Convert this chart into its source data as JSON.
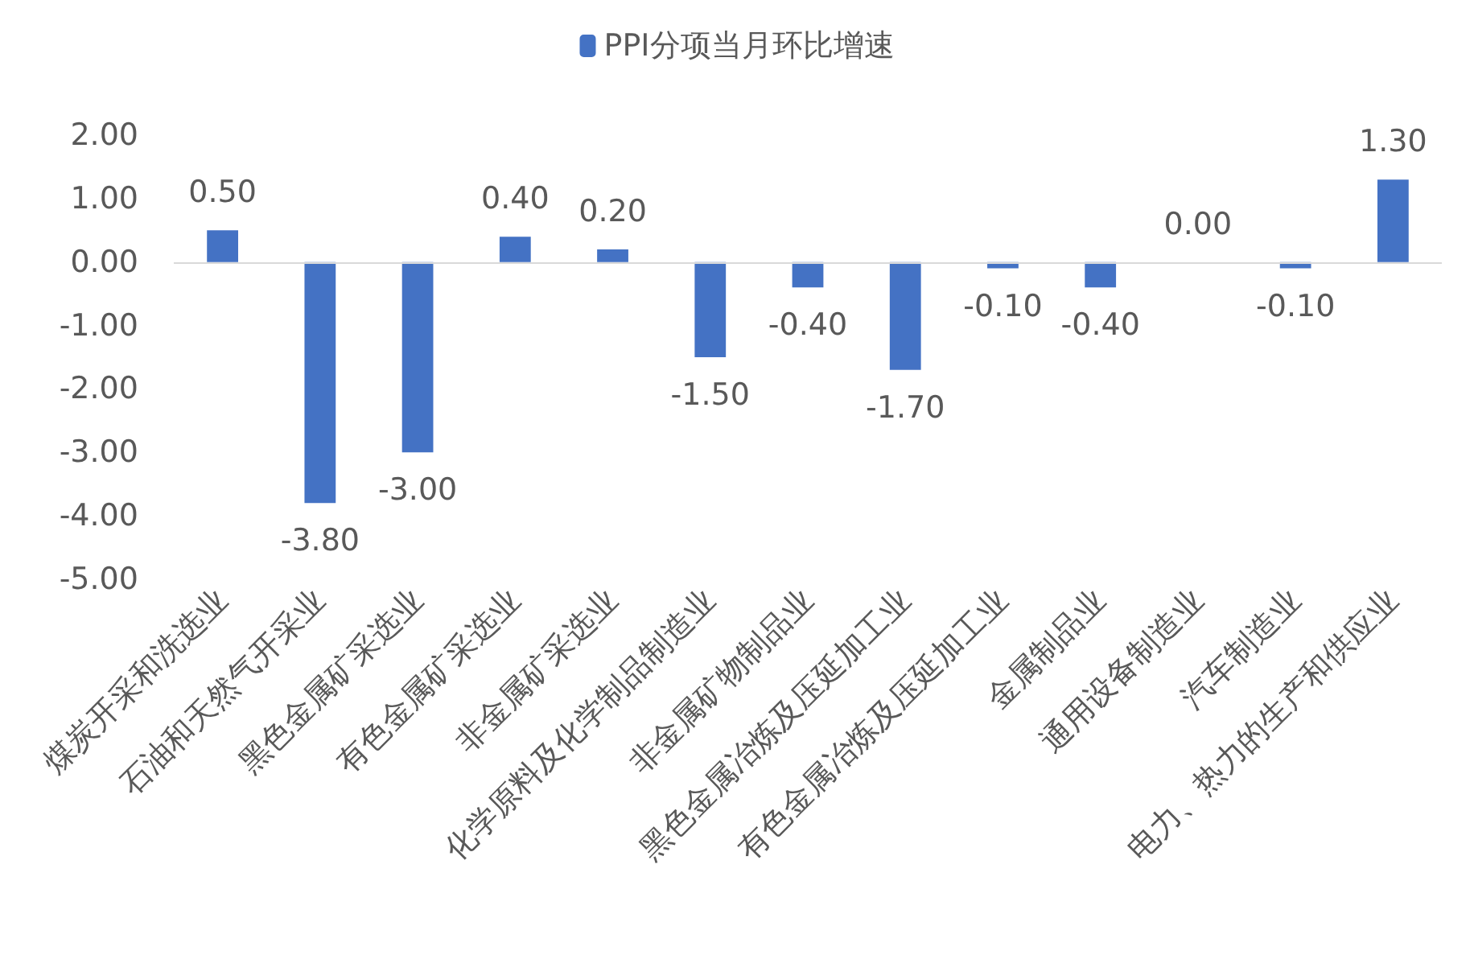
{
  "chart_data": {
    "type": "bar",
    "categories": [
      "煤炭开采和洗选业",
      "石油和天然气开采业",
      "黑色金属矿采选业",
      "有色金属矿采选业",
      "非金属矿采选业",
      "化学原料及化学制品制造业",
      "非金属矿物制品业",
      "黑色金属冶炼及压延加工业",
      "有色金属冶炼及压延加工业",
      "金属制品业",
      "通用设备制造业",
      "汽车制造业",
      "电力、热力的生产和供应业"
    ],
    "series": [
      {
        "name": "PPI分项当月环比增速",
        "color": "#4472c4",
        "values": [
          0.5,
          -3.8,
          -3.0,
          0.4,
          0.2,
          -1.5,
          -0.4,
          -1.7,
          -0.1,
          -0.4,
          0.0,
          -0.1,
          1.3
        ],
        "value_labels": [
          "0.50",
          "-3.80",
          "-3.00",
          "0.40",
          "0.20",
          "-1.50",
          "-0.40",
          "-1.70",
          "-0.10",
          "-0.40",
          "0.00",
          "-0.10",
          "1.30"
        ]
      }
    ],
    "ylim": [
      -5,
      2
    ],
    "yticks": [
      {
        "value": -5,
        "label": "-5.00"
      },
      {
        "value": -4,
        "label": "-4.00"
      },
      {
        "value": -3,
        "label": "-3.00"
      },
      {
        "value": -2,
        "label": "-2.00"
      },
      {
        "value": -1,
        "label": "-1.00"
      },
      {
        "value": 0,
        "label": "0.00"
      },
      {
        "value": 1,
        "label": "1.00"
      },
      {
        "value": 2,
        "label": "2.00"
      }
    ],
    "ref_lines": [
      {
        "axis": "y",
        "value": 0,
        "color": "#d9d9d9"
      }
    ],
    "grid": false,
    "legend": "top"
  }
}
